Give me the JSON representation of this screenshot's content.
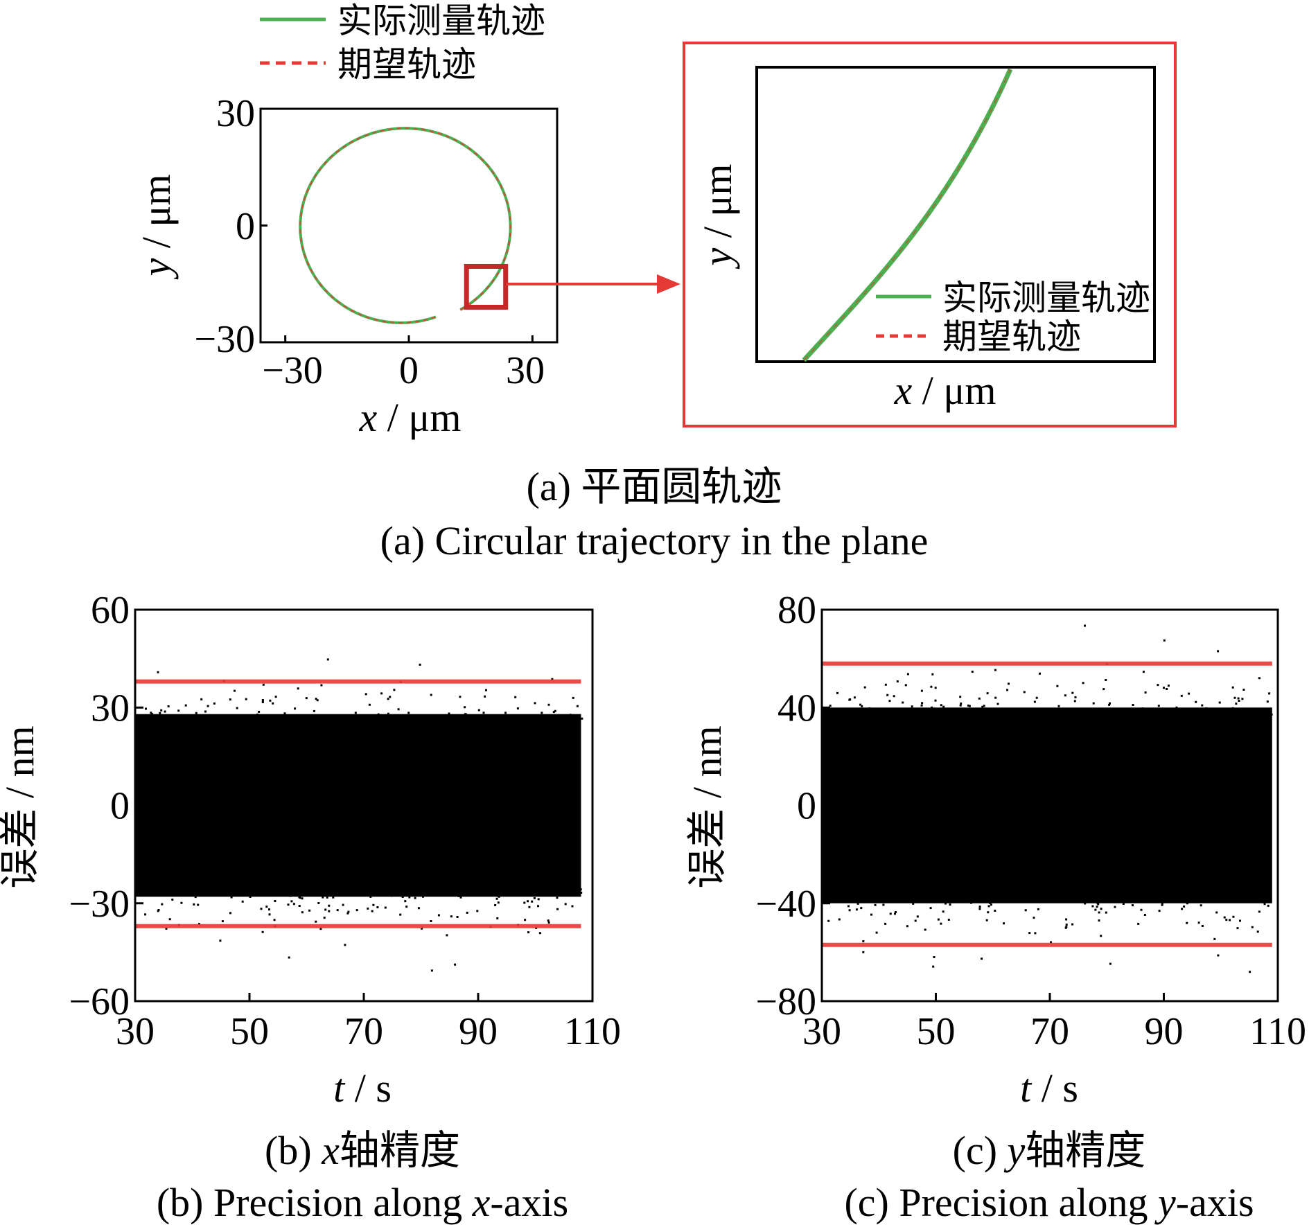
{
  "chart_data": [
    {
      "id": "a",
      "type": "line",
      "caption_cn": "(a)  平面圆轨迹",
      "caption_en": "(a)  Circular trajectory in the plane",
      "xlabel_var": "x",
      "xlabel_unit": " / μm",
      "ylabel_var": "y",
      "ylabel_unit": " / μm",
      "xlim": [
        -36,
        36
      ],
      "ylim": [
        -30,
        30
      ],
      "xticks": [
        -30,
        0,
        30
      ],
      "yticks": [
        -30,
        0,
        30
      ],
      "xtick_labels": [
        "−30",
        "0",
        "30"
      ],
      "ytick_labels": [
        "−30",
        "0",
        "30"
      ],
      "legend_position": "top",
      "series": [
        {
          "name": "实际测量轨迹",
          "style": "solid",
          "color": "#4caf50",
          "shape": "circle",
          "center": [
            0,
            0
          ],
          "radius": 25,
          "start_angle_deg": -60,
          "end_angle_deg": 290,
          "closing_offset": [
            -2,
            0
          ]
        },
        {
          "name": "期望轨迹",
          "style": "dashed",
          "color": "#e53935",
          "shape": "circle",
          "center": [
            0,
            0
          ],
          "radius": 25,
          "start_angle_deg": -60,
          "end_angle_deg": 290,
          "closing_offset": [
            -2,
            0
          ]
        }
      ],
      "zoom_region": {
        "x": [
          14,
          23.5
        ],
        "y": [
          -21,
          -10.5
        ]
      },
      "inset": {
        "xlabel_var": "x",
        "xlabel_unit": " / μm",
        "ylabel_var": "y",
        "ylabel_unit": " / μm",
        "legend_position": "bottom-right",
        "legend": [
          "实际测量轨迹",
          "期望轨迹"
        ]
      }
    },
    {
      "id": "b",
      "type": "scatter",
      "caption_cn_prefix": "(b)  ",
      "caption_cn_var": "x",
      "caption_cn_suffix": "轴精度",
      "caption_en_prefix": "(b)  Precision along ",
      "caption_en_var": "x",
      "caption_en_suffix": "-axis",
      "xlabel_var": "t",
      "xlabel_unit": " / s",
      "ylabel": "误差 / nm",
      "xlim": [
        30,
        110
      ],
      "ylim": [
        -60,
        60
      ],
      "xticks": [
        30,
        50,
        70,
        90,
        110
      ],
      "yticks": [
        60,
        30,
        0,
        -30,
        -60
      ],
      "ytick_labels": [
        "60",
        "30",
        "0",
        "−30",
        "−60"
      ],
      "data_x_range": [
        30,
        108
      ],
      "dense_band": [
        -28,
        28
      ],
      "noise_sigma": 12,
      "bounds": [
        38,
        -37
      ],
      "bound_color": "#e53935"
    },
    {
      "id": "c",
      "type": "scatter",
      "caption_cn_prefix": "(c)  ",
      "caption_cn_var": "y",
      "caption_cn_suffix": "轴精度",
      "caption_en_prefix": "(c)  Precision along ",
      "caption_en_var": "y",
      "caption_en_suffix": "-axis",
      "xlabel_var": "t",
      "xlabel_unit": " / s",
      "ylabel": "误差 / nm",
      "xlim": [
        30,
        110
      ],
      "ylim": [
        -80,
        80
      ],
      "xticks": [
        30,
        50,
        70,
        90,
        110
      ],
      "yticks": [
        80,
        40,
        0,
        -40,
        -80
      ],
      "ytick_labels": [
        "80",
        "40",
        "0",
        "−40",
        "−80"
      ],
      "data_x_range": [
        30,
        109
      ],
      "dense_band": [
        -40,
        40
      ],
      "noise_sigma": 18,
      "bounds": [
        58,
        -57
      ],
      "bound_color": "#e53935"
    }
  ]
}
